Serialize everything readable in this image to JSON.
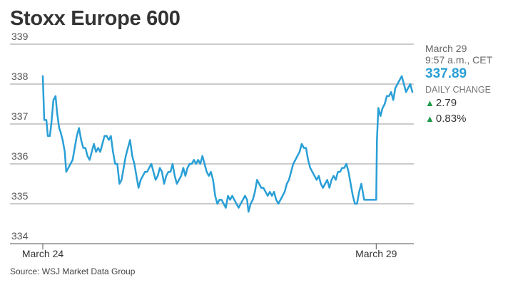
{
  "title": "Stoxx Europe 600",
  "source": "Source: WSJ Market Data Group",
  "sidebar": {
    "date": "March 29",
    "time": "9:57 a.m., CET",
    "price": "337.89",
    "daily_change_label": "DAILY CHANGE",
    "change_points": "2.79",
    "change_percent": "0.83%",
    "up_icon": "triangle-up-icon"
  },
  "colors": {
    "line": "#2a9fd6",
    "up": "#1f9a48",
    "grid": "#999999"
  },
  "chart_data": {
    "type": "line",
    "title": "Stoxx Europe 600",
    "xlabel": "",
    "ylabel": "",
    "ylim": [
      334,
      339
    ],
    "yticks": [
      334,
      335,
      336,
      337,
      338,
      339
    ],
    "xticks": [
      {
        "label": "March 24",
        "x": 0
      },
      {
        "label": "March 29",
        "x": 470
      }
    ],
    "grid": true,
    "series": [
      {
        "name": "",
        "values": [
          [
            0,
            338.2
          ],
          [
            2,
            337.1
          ],
          [
            5,
            337.1
          ],
          [
            7,
            336.7
          ],
          [
            10,
            336.7
          ],
          [
            12,
            337.0
          ],
          [
            15,
            337.6
          ],
          [
            18,
            337.7
          ],
          [
            20,
            337.3
          ],
          [
            23,
            336.9
          ],
          [
            25,
            336.8
          ],
          [
            28,
            336.6
          ],
          [
            31,
            336.3
          ],
          [
            33,
            335.8
          ],
          [
            36,
            335.9
          ],
          [
            39,
            336.0
          ],
          [
            42,
            336.1
          ],
          [
            45,
            336.4
          ],
          [
            48,
            336.7
          ],
          [
            51,
            336.9
          ],
          [
            54,
            336.6
          ],
          [
            57,
            336.4
          ],
          [
            60,
            336.4
          ],
          [
            63,
            336.2
          ],
          [
            66,
            336.1
          ],
          [
            69,
            336.3
          ],
          [
            72,
            336.5
          ],
          [
            75,
            336.3
          ],
          [
            78,
            336.4
          ],
          [
            81,
            336.3
          ],
          [
            84,
            336.5
          ],
          [
            87,
            336.7
          ],
          [
            90,
            336.7
          ],
          [
            93,
            336.6
          ],
          [
            96,
            336.7
          ],
          [
            99,
            336.3
          ],
          [
            102,
            336.0
          ],
          [
            105,
            336.0
          ],
          [
            108,
            335.5
          ],
          [
            111,
            335.6
          ],
          [
            114,
            335.9
          ],
          [
            117,
            336.2
          ],
          [
            120,
            336.4
          ],
          [
            123,
            336.6
          ],
          [
            126,
            336.2
          ],
          [
            129,
            336.0
          ],
          [
            132,
            335.7
          ],
          [
            135,
            335.4
          ],
          [
            138,
            335.6
          ],
          [
            141,
            335.7
          ],
          [
            144,
            335.8
          ],
          [
            147,
            335.8
          ],
          [
            150,
            335.9
          ],
          [
            153,
            336.0
          ],
          [
            156,
            335.8
          ],
          [
            159,
            335.6
          ],
          [
            162,
            335.7
          ],
          [
            165,
            335.9
          ],
          [
            168,
            335.8
          ],
          [
            171,
            335.5
          ],
          [
            174,
            335.7
          ],
          [
            177,
            335.8
          ],
          [
            180,
            335.8
          ],
          [
            183,
            336.0
          ],
          [
            186,
            335.7
          ],
          [
            189,
            335.5
          ],
          [
            192,
            335.6
          ],
          [
            195,
            335.7
          ],
          [
            198,
            335.9
          ],
          [
            201,
            335.7
          ],
          [
            204,
            335.9
          ],
          [
            207,
            336.0
          ],
          [
            210,
            336.0
          ],
          [
            213,
            336.1
          ],
          [
            216,
            336.0
          ],
          [
            219,
            336.1
          ],
          [
            222,
            336.0
          ],
          [
            225,
            336.2
          ],
          [
            228,
            336.0
          ],
          [
            231,
            335.8
          ],
          [
            234,
            335.7
          ],
          [
            237,
            335.8
          ],
          [
            240,
            335.6
          ],
          [
            243,
            335.2
          ],
          [
            246,
            335.0
          ],
          [
            249,
            335.1
          ],
          [
            252,
            335.1
          ],
          [
            255,
            335.0
          ],
          [
            258,
            334.9
          ],
          [
            261,
            335.2
          ],
          [
            264,
            335.1
          ],
          [
            267,
            335.2
          ],
          [
            270,
            335.1
          ],
          [
            273,
            335.0
          ],
          [
            276,
            334.9
          ],
          [
            279,
            335.0
          ],
          [
            282,
            335.1
          ],
          [
            285,
            335.2
          ],
          [
            288,
            335.1
          ],
          [
            290,
            334.8
          ],
          [
            293,
            335.0
          ],
          [
            296,
            335.1
          ],
          [
            299,
            335.3
          ],
          [
            302,
            335.6
          ],
          [
            305,
            335.5
          ],
          [
            308,
            335.4
          ],
          [
            311,
            335.4
          ],
          [
            314,
            335.3
          ],
          [
            317,
            335.2
          ],
          [
            320,
            335.3
          ],
          [
            323,
            335.2
          ],
          [
            326,
            335.3
          ],
          [
            329,
            335.1
          ],
          [
            332,
            335.0
          ],
          [
            335,
            335.1
          ],
          [
            338,
            335.2
          ],
          [
            341,
            335.3
          ],
          [
            344,
            335.5
          ],
          [
            347,
            335.6
          ],
          [
            350,
            335.8
          ],
          [
            353,
            336.0
          ],
          [
            356,
            336.1
          ],
          [
            359,
            336.2
          ],
          [
            362,
            336.3
          ],
          [
            365,
            336.5
          ],
          [
            368,
            336.4
          ],
          [
            371,
            336.4
          ],
          [
            374,
            336.1
          ],
          [
            377,
            335.9
          ],
          [
            380,
            335.8
          ],
          [
            383,
            335.7
          ],
          [
            386,
            335.6
          ],
          [
            389,
            335.7
          ],
          [
            392,
            335.5
          ],
          [
            395,
            335.4
          ],
          [
            398,
            335.5
          ],
          [
            401,
            335.6
          ],
          [
            404,
            335.4
          ],
          [
            407,
            335.6
          ],
          [
            410,
            335.7
          ],
          [
            413,
            335.6
          ],
          [
            416,
            335.8
          ],
          [
            419,
            335.8
          ],
          [
            422,
            335.9
          ],
          [
            425,
            335.9
          ],
          [
            428,
            336.0
          ],
          [
            431,
            335.8
          ],
          [
            434,
            335.5
          ],
          [
            437,
            335.2
          ],
          [
            440,
            335.0
          ],
          [
            443,
            335.0
          ],
          [
            446,
            335.3
          ],
          [
            449,
            335.5
          ],
          [
            451,
            335.3
          ],
          [
            453,
            335.1
          ],
          [
            470,
            335.1
          ],
          [
            471,
            336.6
          ],
          [
            473,
            337.4
          ],
          [
            476,
            337.2
          ],
          [
            479,
            337.4
          ],
          [
            482,
            337.5
          ],
          [
            485,
            337.7
          ],
          [
            488,
            337.7
          ],
          [
            491,
            337.8
          ],
          [
            494,
            337.6
          ],
          [
            497,
            337.9
          ],
          [
            500,
            338.0
          ],
          [
            503,
            338.1
          ],
          [
            506,
            338.2
          ],
          [
            509,
            338.0
          ],
          [
            512,
            337.8
          ],
          [
            515,
            337.9
          ],
          [
            518,
            338.0
          ],
          [
            521,
            337.8
          ]
        ]
      }
    ]
  }
}
